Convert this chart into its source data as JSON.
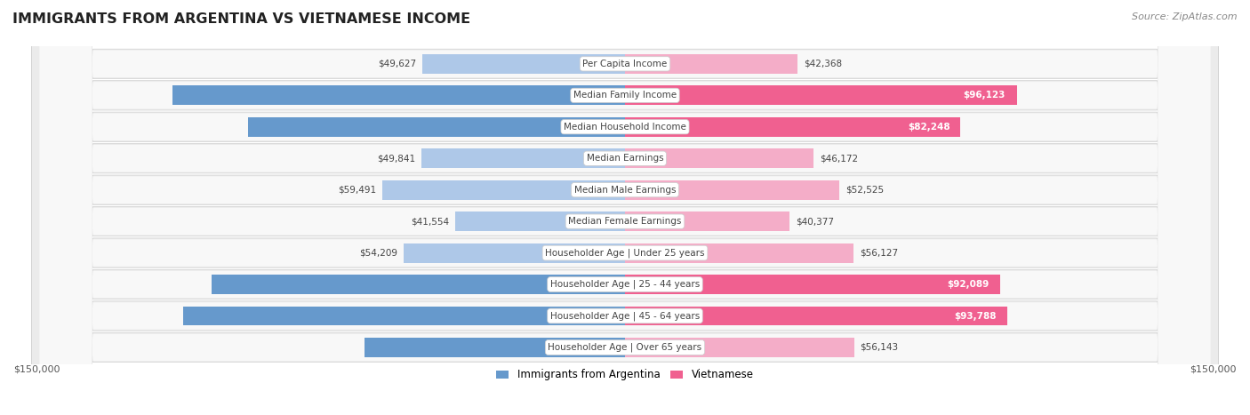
{
  "title": "IMMIGRANTS FROM ARGENTINA VS VIETNAMESE INCOME",
  "source": "Source: ZipAtlas.com",
  "categories": [
    "Per Capita Income",
    "Median Family Income",
    "Median Household Income",
    "Median Earnings",
    "Median Male Earnings",
    "Median Female Earnings",
    "Householder Age | Under 25 years",
    "Householder Age | 25 - 44 years",
    "Householder Age | 45 - 64 years",
    "Householder Age | Over 65 years"
  ],
  "argentina_values": [
    49627,
    110873,
    92417,
    49841,
    59491,
    41554,
    54209,
    101415,
    108264,
    63885
  ],
  "vietnamese_values": [
    42368,
    96123,
    82248,
    46172,
    52525,
    40377,
    56127,
    92089,
    93788,
    56143
  ],
  "argentina_color_light": "#aec8e8",
  "argentina_color_dark": "#6699cc",
  "vietnamese_color_light": "#f4adc8",
  "vietnamese_color_dark": "#f06090",
  "max_value": 150000,
  "argentina_legend": "Immigrants from Argentina",
  "vietnamese_legend": "Vietnamese",
  "inside_label_threshold": 60000,
  "row_bg_color": "#f0f0f0",
  "row_border_color": "#d8d8d8",
  "label_inside_color": "#ffffff",
  "label_outside_color": "#555555"
}
